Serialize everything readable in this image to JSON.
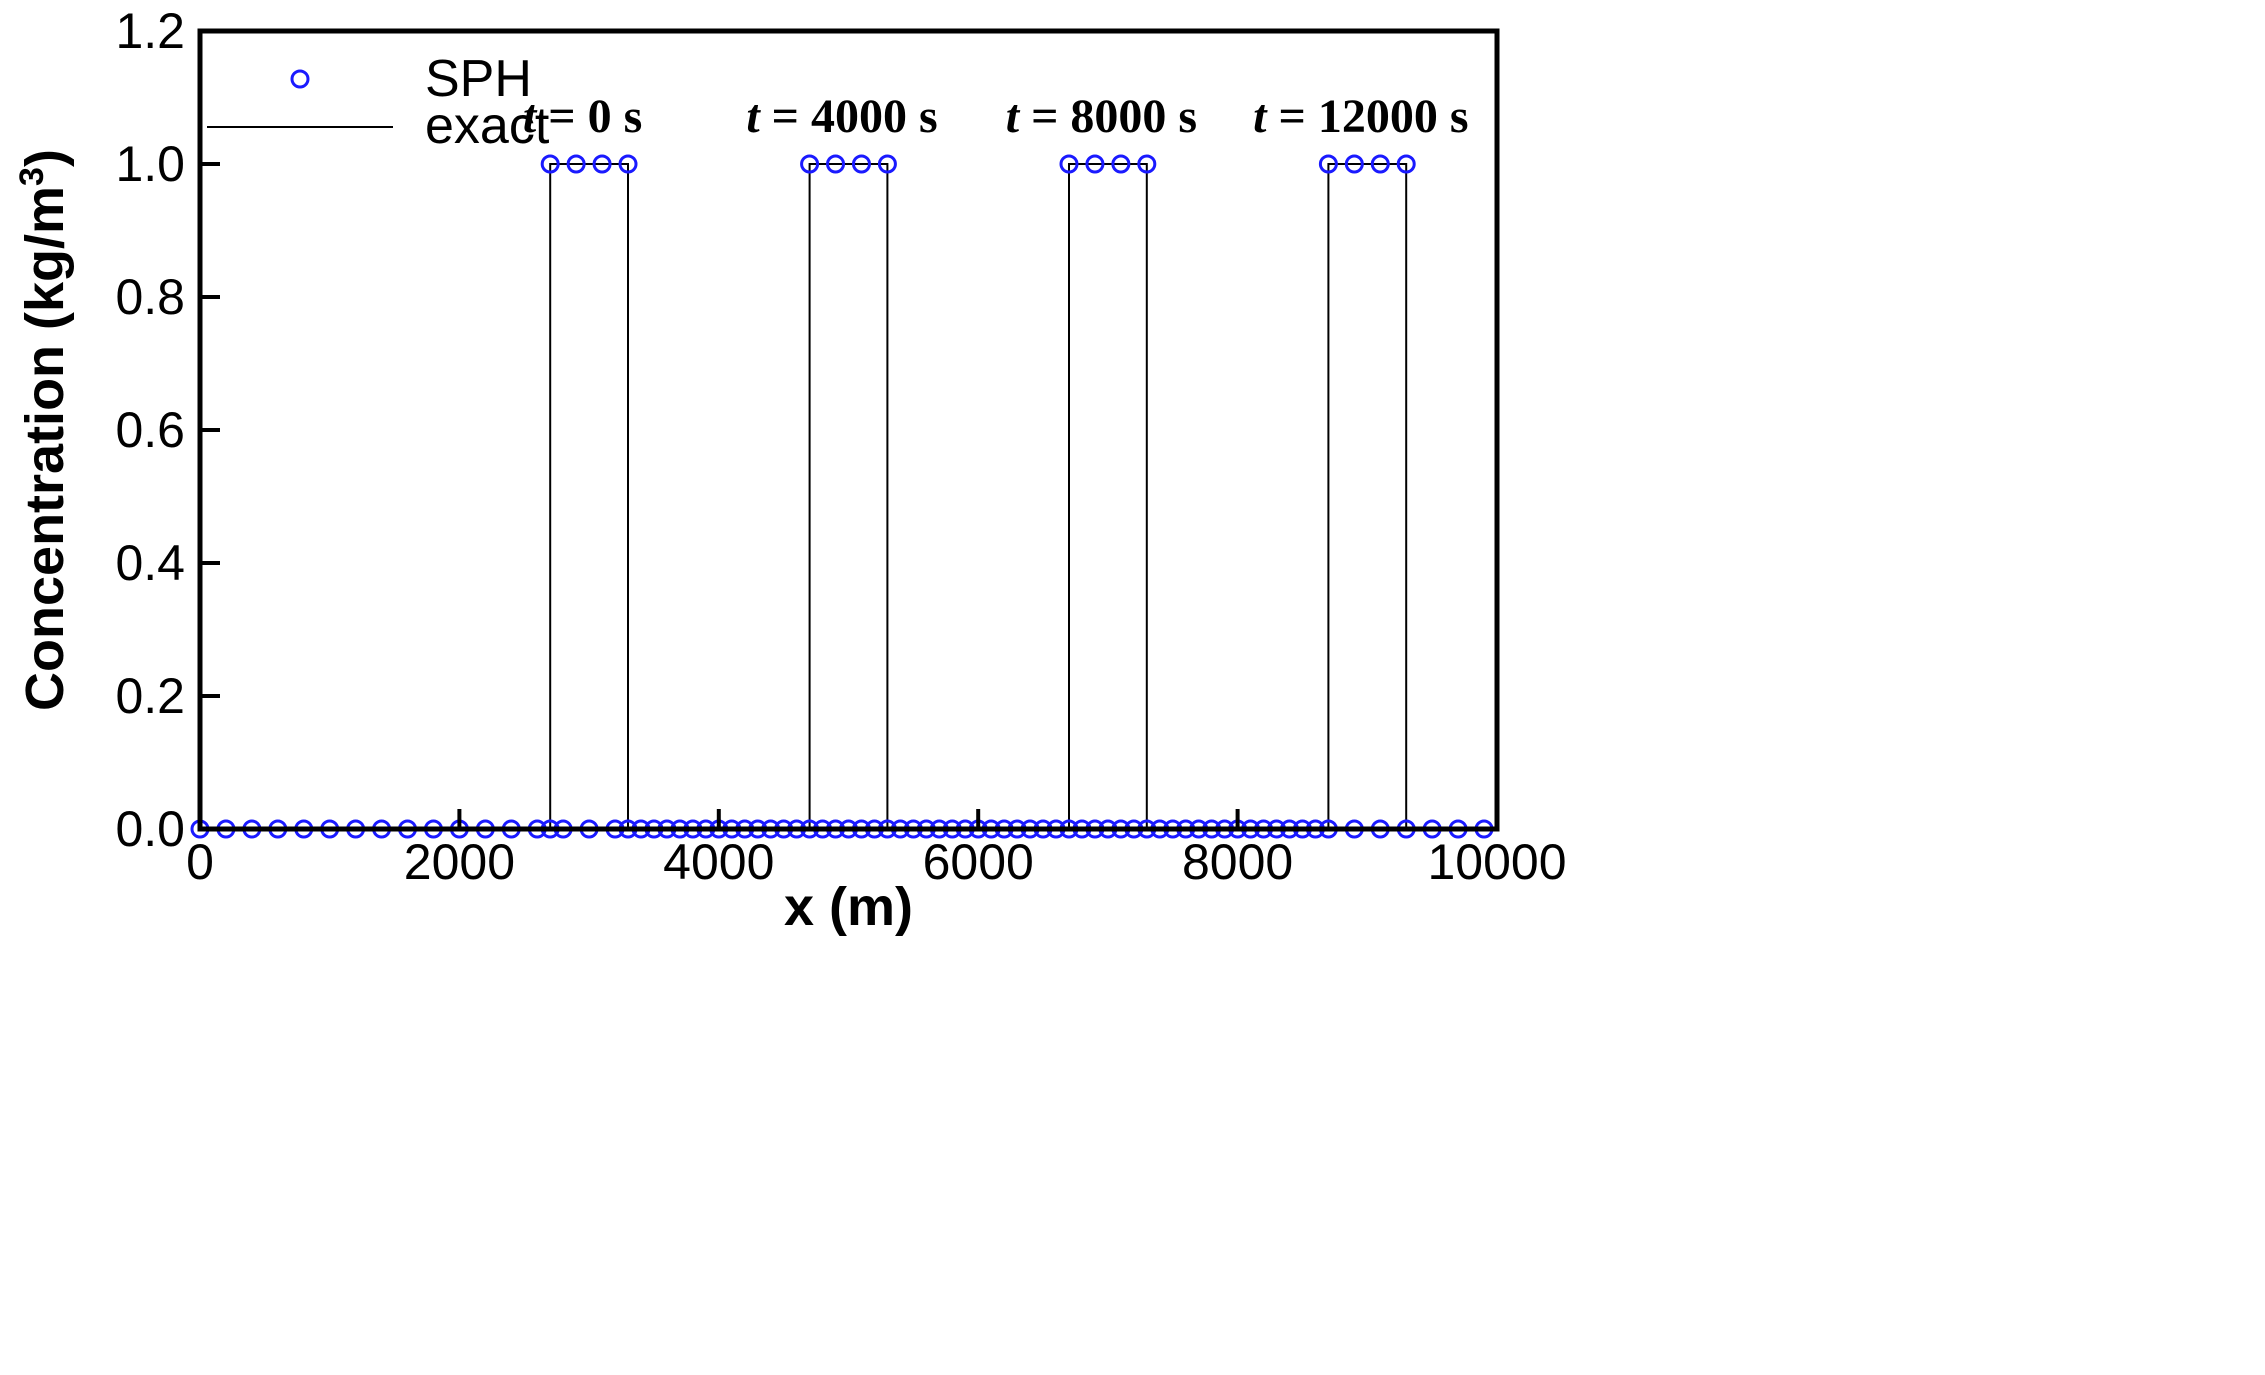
{
  "chart_data": {
    "type": "scatter",
    "xlabel": "x (m)",
    "ylabel_main": "Concentration (kg/m",
    "ylabel_sup": "3",
    "ylabel_close": ")",
    "xlim": [
      0,
      10000
    ],
    "ylim": [
      0,
      1.2
    ],
    "xticks": [
      0,
      2000,
      4000,
      6000,
      8000,
      10000
    ],
    "xtick_labels": [
      "0",
      "2000",
      "4000",
      "6000",
      "8000",
      "10000"
    ],
    "yticks": [
      0,
      0.2,
      0.4,
      0.6,
      0.8,
      1.0,
      1.2
    ],
    "ytick_labels": [
      "0.0",
      "0.2",
      "0.4",
      "0.6",
      "0.8",
      "1.0",
      "1.2"
    ],
    "legend": {
      "placement": "top-left",
      "entries": [
        {
          "label": "SPH",
          "marker": "circle"
        },
        {
          "label": "exact",
          "marker": "line"
        }
      ]
    },
    "series": [
      {
        "name": "SPH",
        "color": "#1a1aff",
        "marker": "open-circle",
        "x": [
          0,
          200,
          400,
          600,
          800,
          1000,
          1200,
          1400,
          1600,
          1800,
          2000,
          2200,
          2400,
          2600,
          2700,
          2800,
          3000,
          3200,
          3300,
          3400,
          3500,
          3600,
          3700,
          3800,
          3900,
          4000,
          4100,
          4200,
          4300,
          4400,
          4500,
          4600,
          4700,
          4800,
          4900,
          5000,
          5100,
          5200,
          5300,
          5400,
          5500,
          5600,
          5700,
          5800,
          5900,
          6000,
          6100,
          6200,
          6300,
          6400,
          6500,
          6600,
          6700,
          6800,
          6900,
          7000,
          7100,
          7200,
          7300,
          7400,
          7500,
          7600,
          7700,
          7800,
          7900,
          8000,
          8100,
          8200,
          8300,
          8400,
          8500,
          8600,
          8700,
          8900,
          9100,
          9300,
          9500,
          9700,
          9900,
          2700,
          2900,
          3100,
          3300,
          4700,
          4900,
          5100,
          5300,
          6700,
          6900,
          7100,
          7300,
          8700,
          8900,
          9100,
          9300
        ],
        "y": [
          0,
          0,
          0,
          0,
          0,
          0,
          0,
          0,
          0,
          0,
          0,
          0,
          0,
          0,
          0,
          0,
          0,
          0,
          0,
          0,
          0,
          0,
          0,
          0,
          0,
          0,
          0,
          0,
          0,
          0,
          0,
          0,
          0,
          0,
          0,
          0,
          0,
          0,
          0,
          0,
          0,
          0,
          0,
          0,
          0,
          0,
          0,
          0,
          0,
          0,
          0,
          0,
          0,
          0,
          0,
          0,
          0,
          0,
          0,
          0,
          0,
          0,
          0,
          0,
          0,
          0,
          0,
          0,
          0,
          0,
          0,
          0,
          0,
          0,
          0,
          0,
          0,
          0,
          0,
          1,
          1,
          1,
          1,
          1,
          1,
          1,
          1,
          1,
          1,
          1,
          1,
          1,
          1,
          1,
          1
        ]
      },
      {
        "name": "exact",
        "color": "#000000",
        "marker": "line",
        "x": [
          0,
          2700,
          2700,
          3300,
          3300,
          4700,
          4700,
          5300,
          5300,
          6700,
          6700,
          7300,
          7300,
          8700,
          8700,
          9300,
          9300,
          10000
        ],
        "y": [
          0,
          0,
          1,
          1,
          0,
          0,
          1,
          1,
          0,
          0,
          1,
          1,
          0,
          0,
          1,
          1,
          0,
          0
        ]
      }
    ],
    "annotations": [
      {
        "var": "t",
        "rest": " = 0 s",
        "x": 2950,
        "y": 1.048
      },
      {
        "var": "t",
        "rest": " = 4000 s",
        "x": 4950,
        "y": 1.048
      },
      {
        "var": "t",
        "rest": " = 8000 s",
        "x": 6950,
        "y": 1.048
      },
      {
        "var": "t",
        "rest": " = 12000 s",
        "x": 8950,
        "y": 1.048
      }
    ]
  }
}
